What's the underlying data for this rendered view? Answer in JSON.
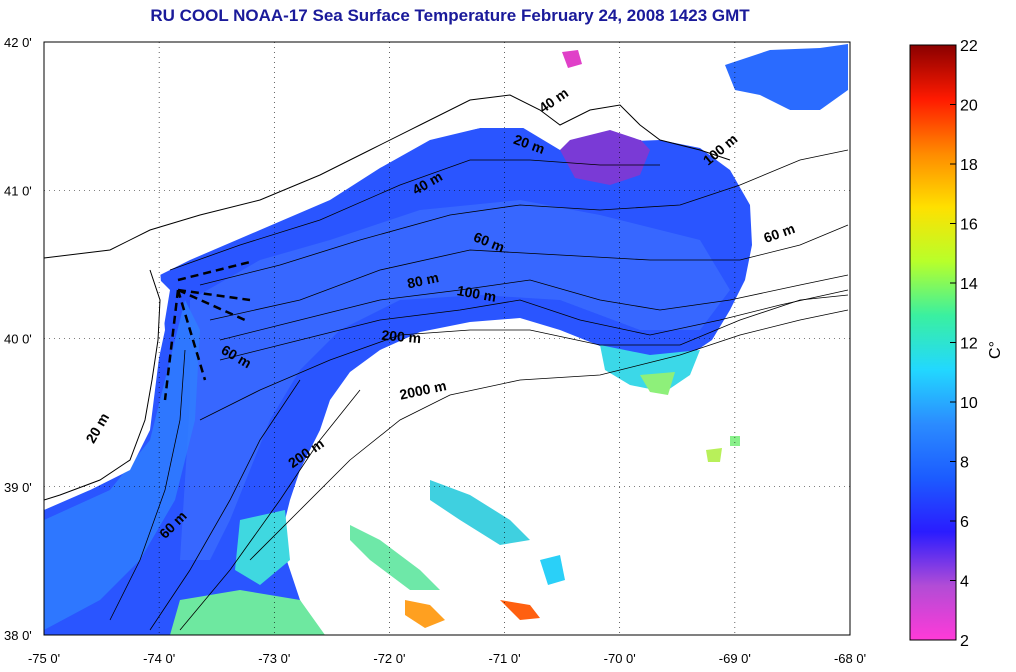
{
  "title": "RU COOL  NOAA-17 Sea Surface Temperature February 24, 2008 1423 GMT",
  "lat_labels": [
    "42 0'",
    "41 0'",
    "40 0'",
    "39 0'",
    "38 0'"
  ],
  "lat_values": [
    42,
    41,
    40,
    39,
    38
  ],
  "lon_labels": [
    "-75 0'",
    "-74 0'",
    "-73 0'",
    "-72 0'",
    "-71 0'",
    "-70 0'",
    "-69 0'",
    "-68 0'"
  ],
  "lon_values": [
    -75,
    -74,
    -73,
    -72,
    -71,
    -70,
    -69,
    -68
  ],
  "extent": {
    "lon": [
      -75,
      -68
    ],
    "lat": [
      38,
      42
    ]
  },
  "grid": true,
  "colorbar": {
    "unit_label": "C°",
    "min": 2,
    "max": 22,
    "ticks": [
      "2",
      "4",
      "6",
      "8",
      "10",
      "12",
      "14",
      "16",
      "18",
      "20",
      "22"
    ],
    "tick_values": [
      2,
      4,
      6,
      8,
      10,
      12,
      14,
      16,
      18,
      20,
      22
    ],
    "colors": [
      "#ff3ad8",
      "#b24cd6",
      "#2a1cff",
      "#1c5cff",
      "#2b8cff",
      "#22d8ff",
      "#3af0a0",
      "#b8ff2a",
      "#ffe000",
      "#ff8a00",
      "#ff1a00",
      "#8a0000"
    ]
  },
  "contours": [
    {
      "text": "40 m",
      "lon": -70.55,
      "lat": 41.58,
      "rotate": -35
    },
    {
      "text": "20 m",
      "lon": -70.8,
      "lat": 41.28,
      "rotate": 20
    },
    {
      "text": "100 m",
      "lon": -69.1,
      "lat": 41.25,
      "rotate": -40
    },
    {
      "text": "40 m",
      "lon": -71.65,
      "lat": 41.02,
      "rotate": -30
    },
    {
      "text": "60 m",
      "lon": -68.6,
      "lat": 40.68,
      "rotate": -20
    },
    {
      "text": "60 m",
      "lon": -71.15,
      "lat": 40.62,
      "rotate": 22
    },
    {
      "text": "80 m",
      "lon": -71.7,
      "lat": 40.36,
      "rotate": -12
    },
    {
      "text": "100 m",
      "lon": -71.25,
      "lat": 40.27,
      "rotate": 10
    },
    {
      "text": "200 m",
      "lon": -71.9,
      "lat": 39.98,
      "rotate": 5
    },
    {
      "text": "60 m",
      "lon": -73.35,
      "lat": 39.85,
      "rotate": 30
    },
    {
      "text": "2000 m",
      "lon": -71.7,
      "lat": 39.62,
      "rotate": -12
    },
    {
      "text": "200 m",
      "lon": -72.7,
      "lat": 39.2,
      "rotate": -35
    },
    {
      "text": "20 m",
      "lon": -74.5,
      "lat": 39.38,
      "rotate": -60
    },
    {
      "text": "60 m",
      "lon": -73.85,
      "lat": 38.72,
      "rotate": -45
    }
  ]
}
